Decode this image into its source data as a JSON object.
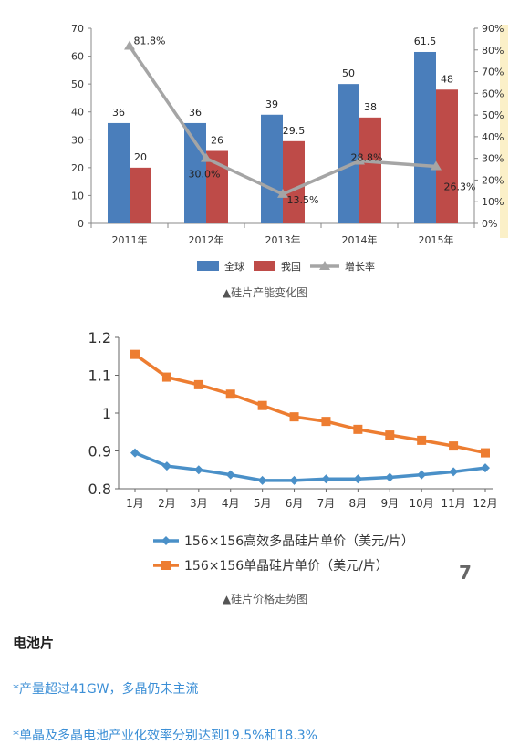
{
  "chart_data": [
    {
      "type": "bar",
      "categories": [
        "2011年",
        "2012年",
        "2013年",
        "2014年",
        "2015年"
      ],
      "series": [
        {
          "name": "全球",
          "kind": "bar",
          "axis": "left",
          "values": [
            36,
            36,
            39,
            50,
            61.5
          ],
          "labels": [
            "36",
            "36",
            "39",
            "50",
            "61.5"
          ],
          "color": "#4a7ebb"
        },
        {
          "name": "我国",
          "kind": "bar",
          "axis": "left",
          "values": [
            20,
            26,
            29.5,
            38,
            48
          ],
          "labels": [
            "20",
            "26",
            "29.5",
            "38",
            "48"
          ],
          "color": "#be4b48"
        },
        {
          "name": "增长率",
          "kind": "line",
          "axis": "right",
          "values": [
            81.8,
            30.0,
            13.5,
            28.8,
            26.3
          ],
          "labels": [
            "81.8%",
            "30.0%",
            "13.5%",
            "28.8%",
            "26.3%"
          ],
          "color": "#a5a5a5"
        }
      ],
      "ylim": [
        0,
        70
      ],
      "yticks": [
        "0",
        "10",
        "20",
        "30",
        "40",
        "50",
        "60",
        "70"
      ],
      "y2lim": [
        0,
        90
      ],
      "y2ticks": [
        "0%",
        "10%",
        "20%",
        "30%",
        "40%",
        "50%",
        "60%",
        "70%",
        "80%",
        "90%"
      ],
      "legend": "bottom",
      "grid": false
    },
    {
      "type": "line",
      "categories": [
        "1月",
        "2月",
        "3月",
        "4月",
        "5月",
        "6月",
        "7月",
        "8月",
        "9月",
        "10月",
        "11月",
        "12月"
      ],
      "series": [
        {
          "name": "156×156高效多晶硅片单价（美元/片）",
          "values": [
            0.895,
            0.86,
            0.85,
            0.837,
            0.822,
            0.822,
            0.826,
            0.826,
            0.83,
            0.837,
            0.845,
            0.855
          ],
          "color": "#4a90c8",
          "marker": "diamond"
        },
        {
          "name": "156×156单晶硅片单价（美元/片）",
          "values": [
            1.155,
            1.095,
            1.075,
            1.05,
            1.02,
            0.99,
            0.978,
            0.957,
            0.942,
            0.928,
            0.913,
            0.895
          ],
          "color": "#ed7d31",
          "marker": "square"
        }
      ],
      "ylim": [
        0.8,
        1.2
      ],
      "yticks": [
        "0.8",
        "0.9",
        "1",
        "1.1",
        "1.2"
      ],
      "legend": "bottom",
      "grid": false,
      "page_number": "7"
    }
  ],
  "captions": {
    "chart1": "▲硅片产能变化图",
    "chart2": "▲硅片价格走势图"
  },
  "section": {
    "title": "电池片",
    "bullets": [
      "*产量超过41GW，多晶仍未主流",
      "*单晶及多晶电池产业化效率分别达到19.5%和18.3%"
    ]
  }
}
